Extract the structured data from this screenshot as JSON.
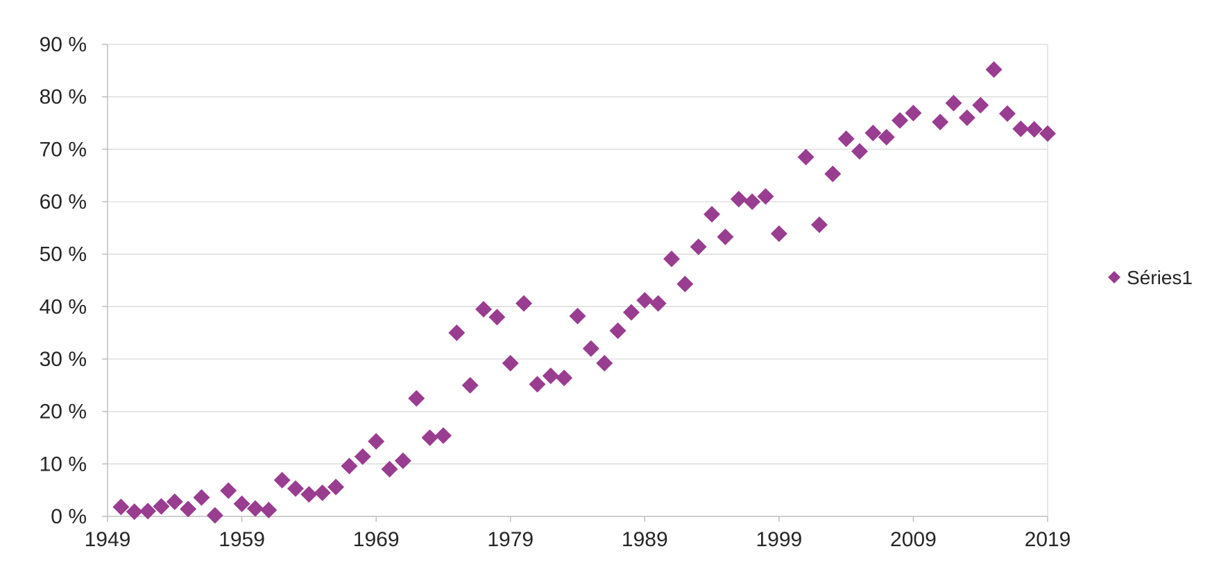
{
  "chart_data": {
    "type": "scatter",
    "title": "",
    "xlabel": "",
    "ylabel": "",
    "xlim": [
      1949,
      2019
    ],
    "ylim": [
      0,
      90
    ],
    "x_ticks": [
      1949,
      1959,
      1969,
      1979,
      1989,
      1999,
      2009,
      2019
    ],
    "x_tick_labels": [
      "1949",
      "1959",
      "1969",
      "1979",
      "1989",
      "1999",
      "2009",
      "2019"
    ],
    "y_ticks": [
      0,
      10,
      20,
      30,
      40,
      50,
      60,
      70,
      80,
      90
    ],
    "y_tick_labels": [
      "0 %",
      "10 %",
      "20 %",
      "30 %",
      "40 %",
      "50 %",
      "60 %",
      "70 %",
      "80 %",
      "90 %"
    ],
    "grid": "horizontal",
    "legend_position": "right",
    "colors": {
      "series1": "#993d90",
      "grid": "#d9d9d9",
      "axis": "#bfbfbf",
      "text": "#262626"
    },
    "series": [
      {
        "name": "Séries1",
        "marker": "diamond",
        "points": [
          [
            1950,
            1.8
          ],
          [
            1951,
            0.9
          ],
          [
            1952,
            1.0
          ],
          [
            1953,
            1.9
          ],
          [
            1954,
            2.8
          ],
          [
            1955,
            1.4
          ],
          [
            1956,
            3.6
          ],
          [
            1957,
            0.2
          ],
          [
            1958,
            4.9
          ],
          [
            1959,
            2.4
          ],
          [
            1960,
            1.5
          ],
          [
            1961,
            1.2
          ],
          [
            1962,
            6.9
          ],
          [
            1963,
            5.3
          ],
          [
            1964,
            4.2
          ],
          [
            1965,
            4.5
          ],
          [
            1966,
            5.6
          ],
          [
            1967,
            9.6
          ],
          [
            1968,
            11.4
          ],
          [
            1969,
            14.3
          ],
          [
            1970,
            9.0
          ],
          [
            1971,
            10.6
          ],
          [
            1972,
            22.5
          ],
          [
            1973,
            15.0
          ],
          [
            1974,
            15.4
          ],
          [
            1975,
            35.0
          ],
          [
            1976,
            25.0
          ],
          [
            1977,
            39.5
          ],
          [
            1978,
            38.0
          ],
          [
            1979,
            29.2
          ],
          [
            1980,
            40.6
          ],
          [
            1981,
            25.2
          ],
          [
            1982,
            26.8
          ],
          [
            1983,
            26.4
          ],
          [
            1984,
            38.2
          ],
          [
            1985,
            32.0
          ],
          [
            1986,
            29.2
          ],
          [
            1987,
            35.4
          ],
          [
            1988,
            38.9
          ],
          [
            1989,
            41.2
          ],
          [
            1990,
            40.6
          ],
          [
            1991,
            49.1
          ],
          [
            1992,
            44.3
          ],
          [
            1993,
            51.4
          ],
          [
            1994,
            57.6
          ],
          [
            1995,
            53.3
          ],
          [
            1996,
            60.5
          ],
          [
            1997,
            60.0
          ],
          [
            1998,
            61.0
          ],
          [
            1999,
            53.9
          ],
          [
            2001,
            68.5
          ],
          [
            2002,
            55.6
          ],
          [
            2003,
            65.3
          ],
          [
            2004,
            72.0
          ],
          [
            2005,
            69.6
          ],
          [
            2006,
            73.1
          ],
          [
            2007,
            72.3
          ],
          [
            2008,
            75.5
          ],
          [
            2009,
            76.9
          ],
          [
            2011,
            75.2
          ],
          [
            2012,
            78.8
          ],
          [
            2013,
            76.0
          ],
          [
            2014,
            78.4
          ],
          [
            2015,
            85.2
          ],
          [
            2016,
            76.8
          ],
          [
            2017,
            73.9
          ],
          [
            2018,
            73.8
          ],
          [
            2019,
            73.0
          ]
        ]
      }
    ]
  }
}
